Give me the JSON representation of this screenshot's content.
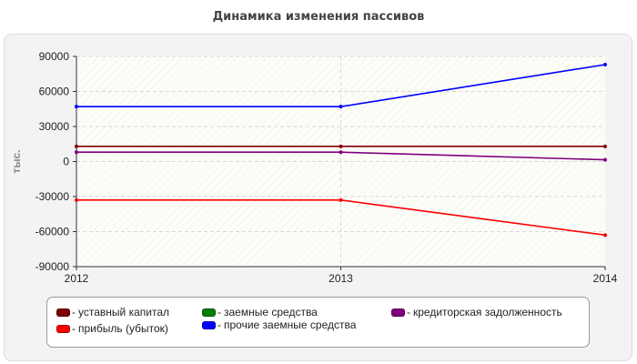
{
  "chart_data": {
    "type": "line",
    "title": "Динамика изменения пассивов",
    "ylabel": "тыс.",
    "xlabel": "",
    "x": [
      "2012",
      "2013",
      "2014"
    ],
    "ylim": [
      -90000,
      90000
    ],
    "yticks": [
      90000,
      60000,
      30000,
      0,
      -30000,
      -60000,
      -90000
    ],
    "grid": true,
    "legend_position": "bottom",
    "series": [
      {
        "name": "уставный капитал",
        "color": "#800000",
        "values": [
          13000,
          13000,
          13000
        ]
      },
      {
        "name": "заемные средства",
        "color": "#008000",
        "values": [
          null,
          null,
          null
        ]
      },
      {
        "name": "кредиторская задолженность",
        "color": "#800080",
        "values": [
          8000,
          8000,
          1500
        ]
      },
      {
        "name": "прибыль (убыток)",
        "color": "#ff0000",
        "values": [
          -33000,
          -33000,
          -63000
        ]
      },
      {
        "name": "прочие заемные средства",
        "color": "#0000ff",
        "values": [
          47000,
          47000,
          83000
        ]
      }
    ]
  }
}
